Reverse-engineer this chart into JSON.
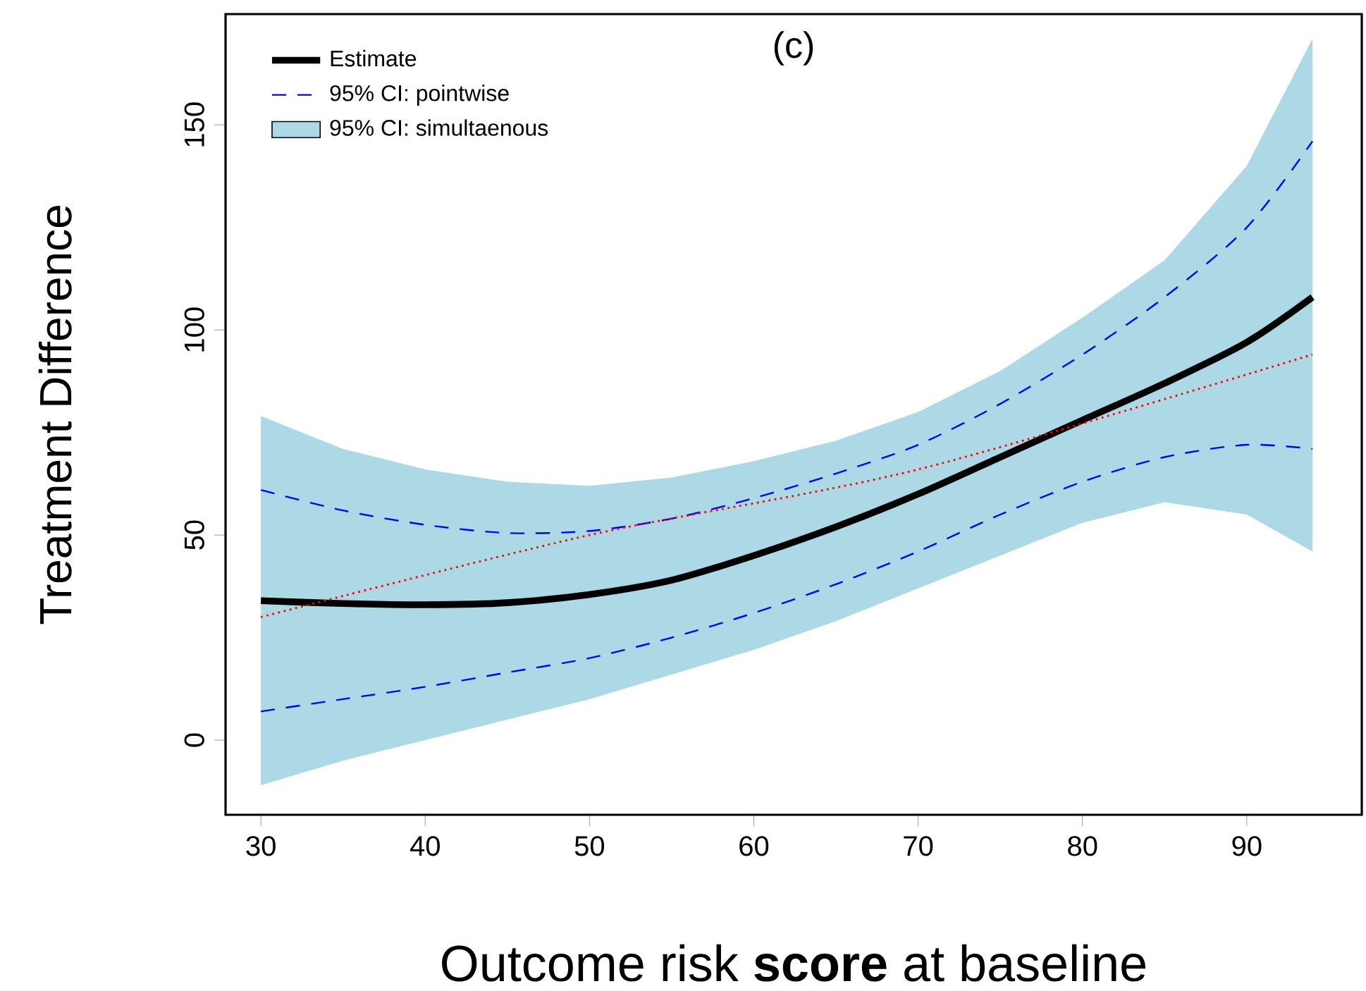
{
  "chart_data": {
    "type": "line",
    "title": "(c)",
    "xlabel": "Outcome risk **score** at baseline",
    "ylabel": "Treatment Difference",
    "x": [
      30,
      35,
      40,
      45,
      50,
      55,
      60,
      65,
      70,
      75,
      80,
      85,
      90,
      94
    ],
    "series": [
      {
        "name": "Estimate",
        "type": "line",
        "line_style": "solid",
        "color": "#000000",
        "values": [
          34,
          33.3,
          33,
          33.5,
          35.5,
          39,
          45,
          52,
          60,
          69,
          78,
          87,
          97,
          108
        ]
      },
      {
        "name": "95% CI: pointwise",
        "type": "line",
        "line_style": "dashed",
        "color": "#0000ff",
        "values": [
          61,
          56,
          52.5,
          50.5,
          51,
          54,
          59,
          65,
          72,
          82,
          94,
          108,
          125,
          146
        ]
      },
      {
        "type": "line",
        "line_style": "dashed",
        "color": "#0000ff",
        "values": [
          7,
          10,
          13,
          16.5,
          20,
          25,
          31,
          38,
          46,
          55,
          63,
          69,
          72,
          71
        ]
      },
      {
        "name": "95% CI: simultaenous",
        "type": "line",
        "line_style": "solid",
        "color": "#add8e6",
        "values": [
          null,
          null,
          null,
          null,
          null,
          null,
          null,
          null,
          null,
          null,
          null,
          null,
          null,
          null
        ],
        "lower": [
          -11,
          -5,
          0,
          5,
          10,
          16,
          22,
          29,
          37,
          45,
          53,
          58,
          55,
          46
        ],
        "upper": [
          79,
          71,
          66,
          63,
          62,
          64,
          68,
          73,
          80,
          90,
          103,
          117,
          140,
          171
        ]
      },
      {
        "type": "line",
        "line_style": "dotted",
        "color": "#ff0000",
        "x": [
          30,
          50,
          70,
          94
        ],
        "values": [
          30,
          50,
          66,
          94
        ]
      }
    ],
    "xlim": [
      27.85,
      97
    ],
    "ylim": [
      -18.2,
      177
    ],
    "xticks": [
      30,
      40,
      50,
      60,
      70,
      80,
      90
    ],
    "yticks": [
      0,
      50,
      100,
      150
    ],
    "legend": "top left",
    "grid": false
  }
}
